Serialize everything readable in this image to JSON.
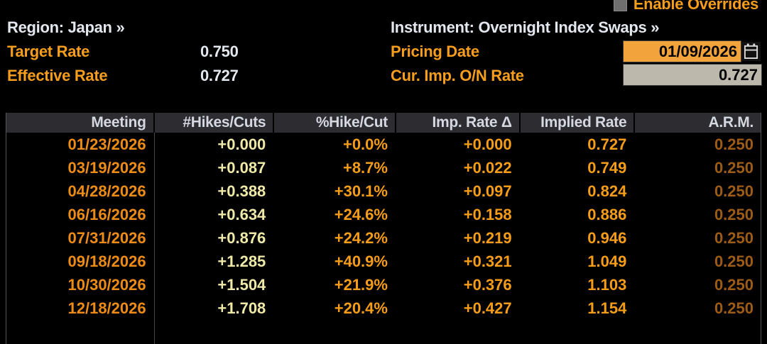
{
  "colors": {
    "background": "#000000",
    "amber_label": "#f59d1c",
    "white_text": "#e3e7ee",
    "header_bg": "#2d2d31",
    "date_orange": "#ec8c16",
    "pale_yellow": "#efe9a8",
    "value_orange": "#f59d18",
    "arm_dim_orange": "#9d5c16",
    "pricing_field_bg": "#f2a33c",
    "override_field_bg": "#bdb8ac",
    "checkbox_gray": "#6f6f6f"
  },
  "top": {
    "enable_overrides_label": "Enable Overrides",
    "region_label": "Region: Japan »",
    "instrument_label": "Instrument: Overnight Index Swaps »",
    "target_rate_label": "Target Rate",
    "target_rate_value": "0.750",
    "effective_rate_label": "Effective Rate",
    "effective_rate_value": "0.727",
    "pricing_date_label": "Pricing Date",
    "pricing_date_value": "01/09/2026",
    "cur_imp_on_rate_label": "Cur. Imp. O/N Rate",
    "cur_imp_on_rate_value": "0.727",
    "calendar_icon": "calendar-icon"
  },
  "table": {
    "headers": [
      "Meeting",
      "#Hikes/Cuts",
      "%Hike/Cut",
      "Imp. Rate Δ",
      "Implied Rate",
      "A.R.M."
    ],
    "rows": [
      {
        "meeting": "01/23/2026",
        "hikes_cuts": "+0.000",
        "pct_hike_cut": "+0.0%",
        "imp_rate_delta": "+0.000",
        "implied_rate": "0.727",
        "arm": "0.250"
      },
      {
        "meeting": "03/19/2026",
        "hikes_cuts": "+0.087",
        "pct_hike_cut": "+8.7%",
        "imp_rate_delta": "+0.022",
        "implied_rate": "0.749",
        "arm": "0.250"
      },
      {
        "meeting": "04/28/2026",
        "hikes_cuts": "+0.388",
        "pct_hike_cut": "+30.1%",
        "imp_rate_delta": "+0.097",
        "implied_rate": "0.824",
        "arm": "0.250"
      },
      {
        "meeting": "06/16/2026",
        "hikes_cuts": "+0.634",
        "pct_hike_cut": "+24.6%",
        "imp_rate_delta": "+0.158",
        "implied_rate": "0.886",
        "arm": "0.250"
      },
      {
        "meeting": "07/31/2026",
        "hikes_cuts": "+0.876",
        "pct_hike_cut": "+24.2%",
        "imp_rate_delta": "+0.219",
        "implied_rate": "0.946",
        "arm": "0.250"
      },
      {
        "meeting": "09/18/2026",
        "hikes_cuts": "+1.285",
        "pct_hike_cut": "+40.9%",
        "imp_rate_delta": "+0.321",
        "implied_rate": "1.049",
        "arm": "0.250"
      },
      {
        "meeting": "10/30/2026",
        "hikes_cuts": "+1.504",
        "pct_hike_cut": "+21.9%",
        "imp_rate_delta": "+0.376",
        "implied_rate": "1.103",
        "arm": "0.250"
      },
      {
        "meeting": "12/18/2026",
        "hikes_cuts": "+1.708",
        "pct_hike_cut": "+20.4%",
        "imp_rate_delta": "+0.427",
        "implied_rate": "1.154",
        "arm": "0.250"
      }
    ]
  }
}
